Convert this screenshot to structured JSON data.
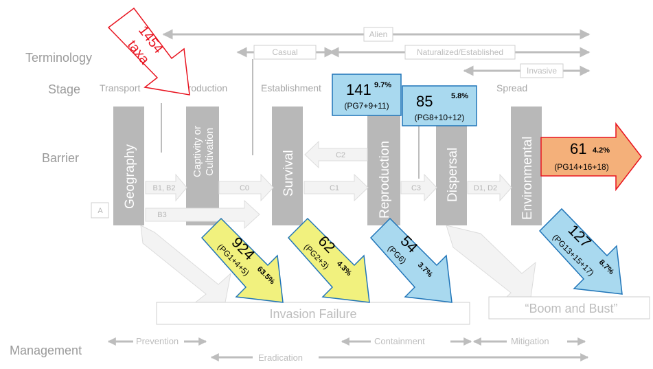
{
  "rows": {
    "terminology": "Terminology",
    "stage": "Stage",
    "barrier": "Barrier",
    "management": "Management"
  },
  "terminology": {
    "alien": "Alien",
    "casual": "Casual",
    "naturalized": "Naturalized/Established",
    "invasive": "Invasive"
  },
  "stages": {
    "transport": "Transport",
    "introduction": "Introduction",
    "establishment": "Establishment",
    "spread": "Spread"
  },
  "barriers": {
    "geography": "Geography",
    "captivity_line1": "Captivity or",
    "captivity_line2": "Cultivation",
    "survival": "Survival",
    "reproduction": "Reproduction",
    "dispersal": "Dispersal",
    "environmental": "Environmental"
  },
  "transitions": {
    "a": "A",
    "b1b2": "B1, B2",
    "b3": "B3",
    "c0": "C0",
    "c1": "C1",
    "c2": "C2",
    "c3": "C3",
    "d1d2": "D1, D2"
  },
  "counts": {
    "total_num": "1454",
    "total_unit": "taxa",
    "reproduction_num": "141",
    "reproduction_pct": "9.7%",
    "reproduction_pg": "(PG7+9+11)",
    "dispersal_num": "85",
    "dispersal_pct": "5.8%",
    "dispersal_pg": "(PG8+10+12)",
    "environmental_num": "61",
    "environmental_pct": "4.2%",
    "environmental_pg": "(PG14+16+18)",
    "fail_captivity_num": "924",
    "fail_captivity_pct": "63.5%",
    "fail_captivity_pg": "(PG1+4+5)",
    "fail_survival_num": "62",
    "fail_survival_pct": "4.3%",
    "fail_survival_pg": "(PG2+3)",
    "fail_reproduction_num": "54",
    "fail_reproduction_pct": "3.7%",
    "fail_reproduction_pg": "(PG6)",
    "boom_num": "127",
    "boom_pct": "8.7%",
    "boom_pg": "(PG13+15+17)"
  },
  "outcomes": {
    "invasion_failure": "Invasion Failure",
    "boom_bust": "“Boom and Bust”"
  },
  "management": {
    "prevention": "Prevention",
    "containment": "Containment",
    "mitigation": "Mitigation",
    "eradication": "Eradication"
  },
  "colors": {
    "red": "#e8121e",
    "blue_fill": "#a9d9ef",
    "blue_stroke": "#1f74b8",
    "yellow_fill": "#f1f17e",
    "orange_fill": "#f4b07a",
    "barrier_gray": "#b8b8b8"
  }
}
